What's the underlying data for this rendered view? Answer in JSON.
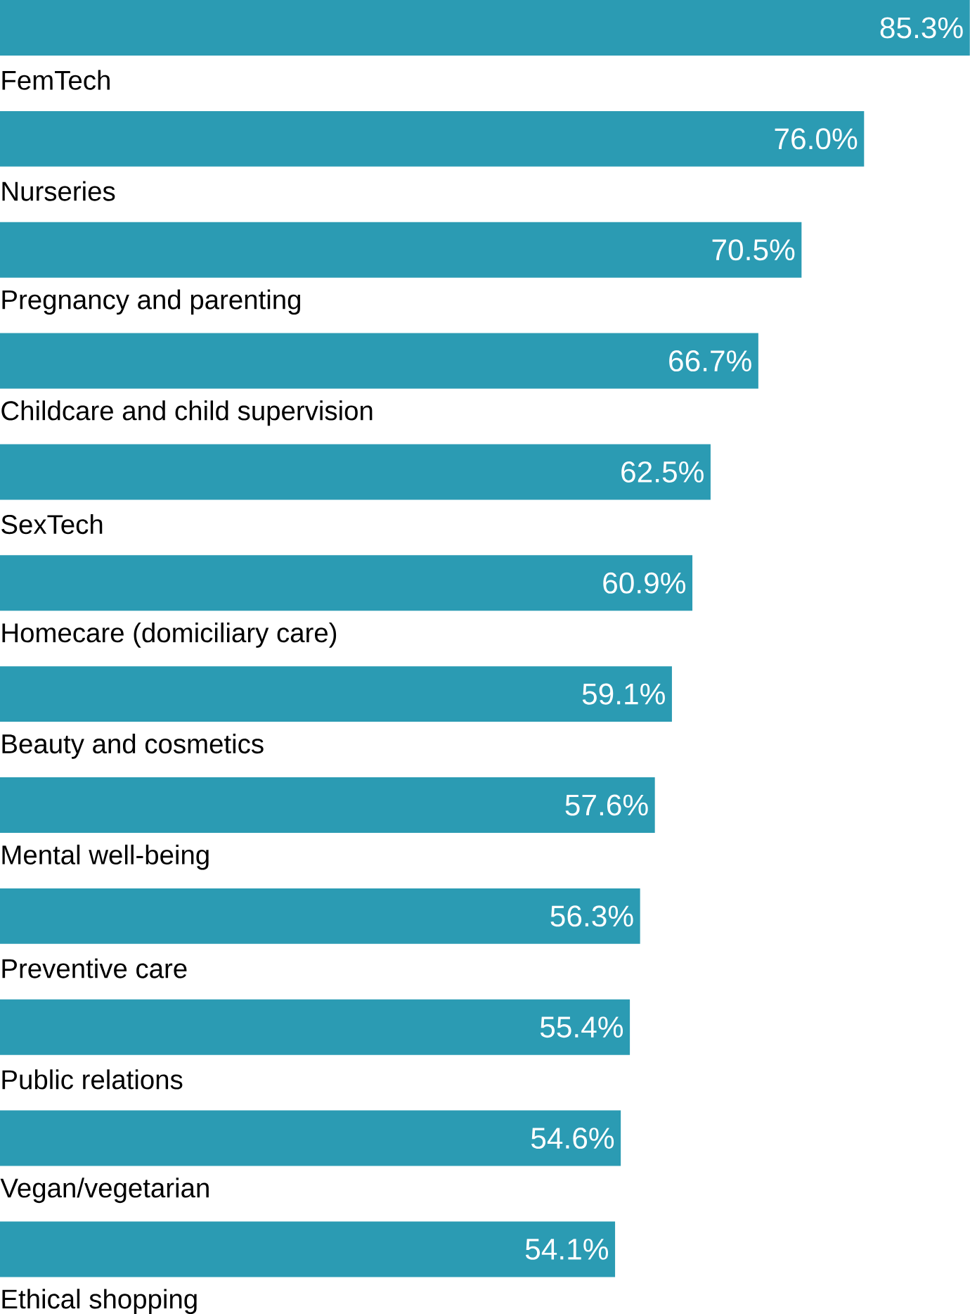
{
  "chart_data": {
    "type": "bar",
    "orientation": "horizontal",
    "categories": [
      "FemTech",
      "Nurseries",
      "Pregnancy and parenting",
      "Childcare and child supervision",
      "SexTech",
      "Homecare (domiciliary care)",
      "Beauty and cosmetics",
      "Mental well-being",
      "Preventive care",
      "Public relations",
      "Vegan/vegetarian",
      "Ethical shopping"
    ],
    "values": [
      85.3,
      76.0,
      70.5,
      66.7,
      62.5,
      60.9,
      59.1,
      57.6,
      56.3,
      55.4,
      54.6,
      54.1
    ],
    "value_labels": [
      "85.3%",
      "76.0%",
      "70.5%",
      "66.7%",
      "62.5%",
      "60.9%",
      "59.1%",
      "57.6%",
      "56.3%",
      "55.4%",
      "54.6%",
      "54.1%"
    ],
    "color": "#2b9bb3"
  }
}
